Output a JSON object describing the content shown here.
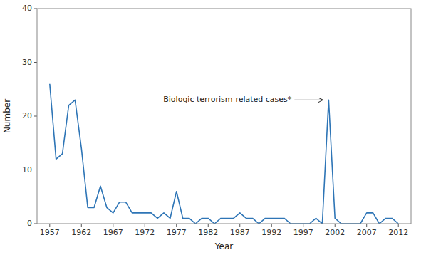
{
  "chart_data": {
    "type": "line",
    "xlabel": "Year",
    "ylabel": "Number",
    "x": [
      1957,
      1958,
      1959,
      1960,
      1961,
      1962,
      1963,
      1964,
      1965,
      1966,
      1967,
      1968,
      1969,
      1970,
      1971,
      1972,
      1973,
      1974,
      1975,
      1976,
      1977,
      1978,
      1979,
      1980,
      1981,
      1982,
      1983,
      1984,
      1985,
      1986,
      1987,
      1988,
      1989,
      1990,
      1991,
      1992,
      1993,
      1994,
      1995,
      1996,
      1997,
      1998,
      1999,
      2000,
      2001,
      2002,
      2003,
      2004,
      2005,
      2006,
      2007,
      2008,
      2009,
      2010,
      2011,
      2012
    ],
    "values": [
      26,
      12,
      13,
      22,
      23,
      14,
      3,
      3,
      7,
      3,
      2,
      4,
      4,
      2,
      2,
      2,
      2,
      1,
      2,
      1,
      6,
      1,
      1,
      0,
      1,
      1,
      0,
      1,
      1,
      1,
      2,
      1,
      1,
      0,
      1,
      1,
      1,
      1,
      0,
      0,
      0,
      0,
      1,
      0,
      23,
      1,
      0,
      0,
      0,
      0,
      2,
      2,
      0,
      1,
      1,
      0
    ],
    "color": "#2e75b6",
    "xlim": [
      1955,
      2014
    ],
    "ylim": [
      0,
      40
    ],
    "xticks": [
      1957,
      1962,
      1967,
      1972,
      1977,
      1982,
      1987,
      1992,
      1997,
      2002,
      2007,
      2012
    ],
    "yticks": [
      0,
      10,
      20,
      30,
      40
    ],
    "grid": false,
    "annotations": [
      {
        "text": "Biologic terrorism-related cases*",
        "x": 2001,
        "y": 23
      }
    ]
  }
}
